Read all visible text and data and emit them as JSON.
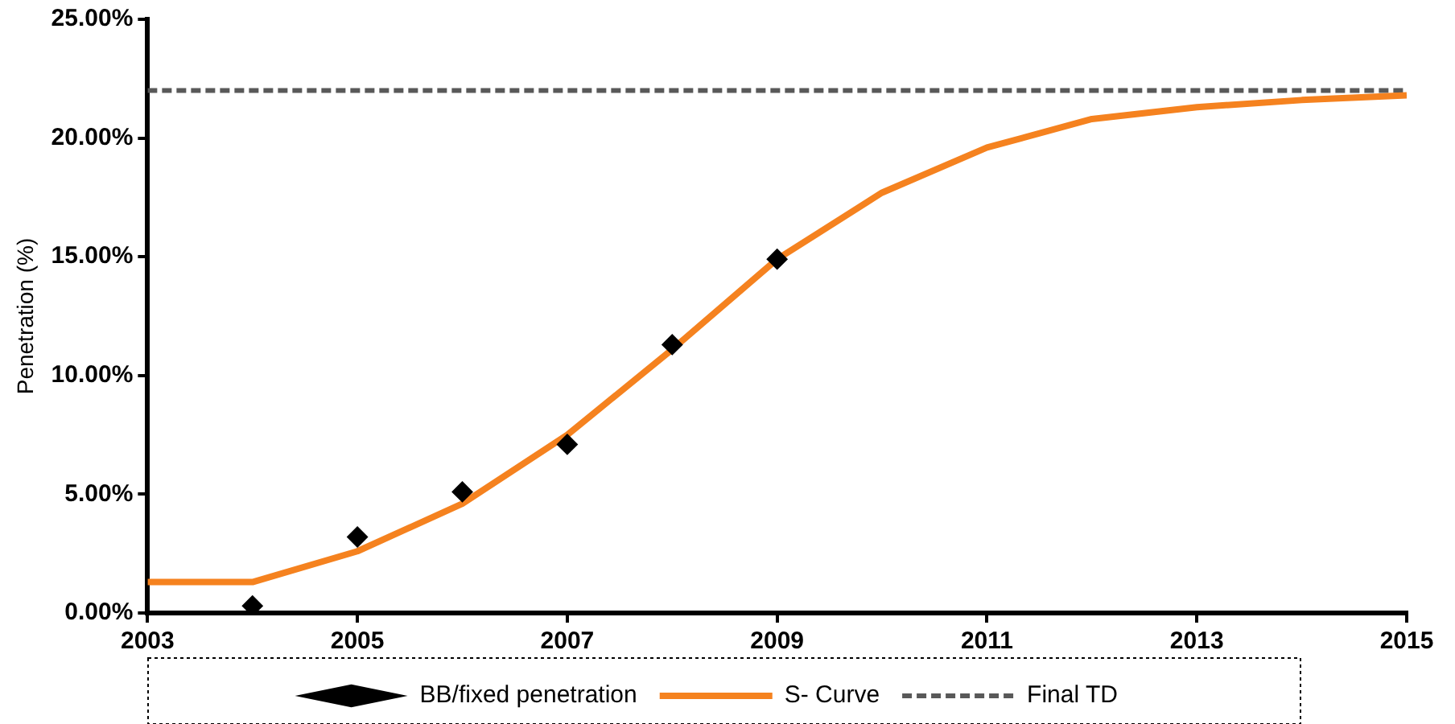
{
  "chart_data": {
    "type": "line",
    "ylabel": "Penetration (%)",
    "xlim": [
      2003,
      2015
    ],
    "xticks": [
      2003,
      2005,
      2007,
      2009,
      2011,
      2013,
      2015
    ],
    "ylim": [
      0,
      25
    ],
    "yticks": [
      {
        "value": 0,
        "label": "0.00%"
      },
      {
        "value": 5,
        "label": "5.00%"
      },
      {
        "value": 10,
        "label": "10.00%"
      },
      {
        "value": 15,
        "label": "15.00%"
      },
      {
        "value": 20,
        "label": "20.00%"
      },
      {
        "value": 25,
        "label": "25.00%"
      }
    ],
    "grid": false,
    "legend": "bottom",
    "series": [
      {
        "name": "BB/fixed penetration",
        "type": "scatter",
        "marker": "diamond",
        "color": "#000000",
        "x": [
          2004,
          2005,
          2006,
          2007,
          2008,
          2009
        ],
        "values": [
          0.3,
          3.2,
          5.1,
          7.1,
          11.3,
          14.9
        ]
      },
      {
        "name": "S- Curve",
        "type": "line",
        "color": "#f5821f",
        "x": [
          2003,
          2004,
          2005,
          2006,
          2007,
          2008,
          2009,
          2010,
          2011,
          2012,
          2013,
          2014,
          2015
        ],
        "values": [
          1.3,
          1.3,
          2.6,
          4.6,
          7.5,
          11.1,
          14.9,
          17.7,
          19.6,
          20.8,
          21.3,
          21.6,
          21.8
        ]
      },
      {
        "name": "Final TD",
        "type": "line",
        "line_style": "dashed",
        "color": "#595959",
        "x": [
          2003,
          2015
        ],
        "values": [
          22,
          22
        ]
      }
    ]
  }
}
